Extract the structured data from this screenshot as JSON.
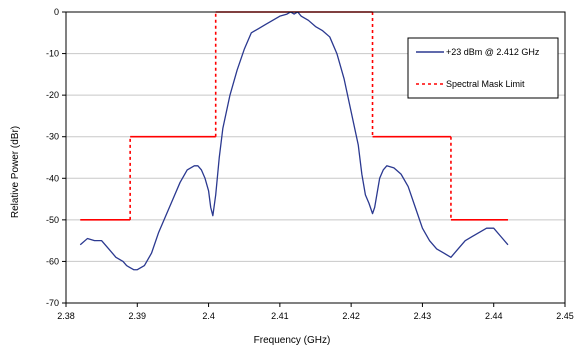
{
  "chart_data": {
    "type": "line",
    "xlabel": "Frequency (GHz)",
    "ylabel": "Relative Power (dBr)",
    "xlim": [
      2.38,
      2.45
    ],
    "ylim": [
      -70,
      0
    ],
    "xticks": [
      "2.38",
      "2.39",
      "2.4",
      "2.41",
      "2.42",
      "2.43",
      "2.44",
      "2.45"
    ],
    "yticks": [
      "0",
      "-10",
      "-20",
      "-30",
      "-40",
      "-50",
      "-60",
      "-70"
    ],
    "grid": "horizontal",
    "legend_position": "top-right",
    "series": [
      {
        "name": "+23 dBm @ 2.412 GHz",
        "color": "#2b3990",
        "style": "solid",
        "x": [
          2.382,
          2.383,
          2.384,
          2.385,
          2.386,
          2.387,
          2.388,
          2.3885,
          2.389,
          2.3895,
          2.39,
          2.391,
          2.392,
          2.393,
          2.394,
          2.395,
          2.396,
          2.397,
          2.398,
          2.3985,
          2.399,
          2.3995,
          2.4,
          2.4003,
          2.4006,
          2.401,
          2.4015,
          2.402,
          2.403,
          2.404,
          2.405,
          2.406,
          2.407,
          2.408,
          2.409,
          2.41,
          2.411,
          2.4115,
          2.412,
          2.4125,
          2.413,
          2.414,
          2.415,
          2.416,
          2.417,
          2.418,
          2.419,
          2.42,
          2.421,
          2.4215,
          2.422,
          2.4225,
          2.423,
          2.4233,
          2.4236,
          2.424,
          2.4245,
          2.425,
          2.426,
          2.427,
          2.428,
          2.429,
          2.43,
          2.431,
          2.432,
          2.433,
          2.434,
          2.435,
          2.436,
          2.437,
          2.438,
          2.439,
          2.44,
          2.441,
          2.442
        ],
        "y": [
          -56,
          -54.5,
          -55,
          -55,
          -57,
          -59,
          -60,
          -61,
          -61.5,
          -62,
          -62,
          -61,
          -58,
          -53,
          -49,
          -45,
          -41,
          -38,
          -37,
          -37,
          -38,
          -40,
          -43,
          -47,
          -49,
          -44,
          -35,
          -28,
          -20,
          -14,
          -9,
          -5,
          -4,
          -3,
          -2,
          -1,
          -0.5,
          0,
          -0.5,
          0,
          -1,
          -2,
          -3.5,
          -4.5,
          -6,
          -10,
          -16,
          -24,
          -32,
          -39,
          -44,
          -46,
          -48.5,
          -47,
          -44,
          -40,
          -38,
          -37,
          -37.5,
          -39,
          -42,
          -47,
          -52,
          -55,
          -57,
          -58,
          -59,
          -57,
          -55,
          -54,
          -53,
          -52,
          -52,
          -54,
          -56
        ]
      },
      {
        "name": "Spectral Mask Limit",
        "color": "#ff0000",
        "style": "dashed",
        "x": [
          2.382,
          2.389,
          2.389,
          2.401,
          2.401,
          2.423,
          2.423,
          2.434,
          2.434,
          2.442
        ],
        "y": [
          -50,
          -50,
          -30,
          -30,
          0,
          0,
          -30,
          -30,
          -50,
          -50
        ]
      }
    ]
  }
}
